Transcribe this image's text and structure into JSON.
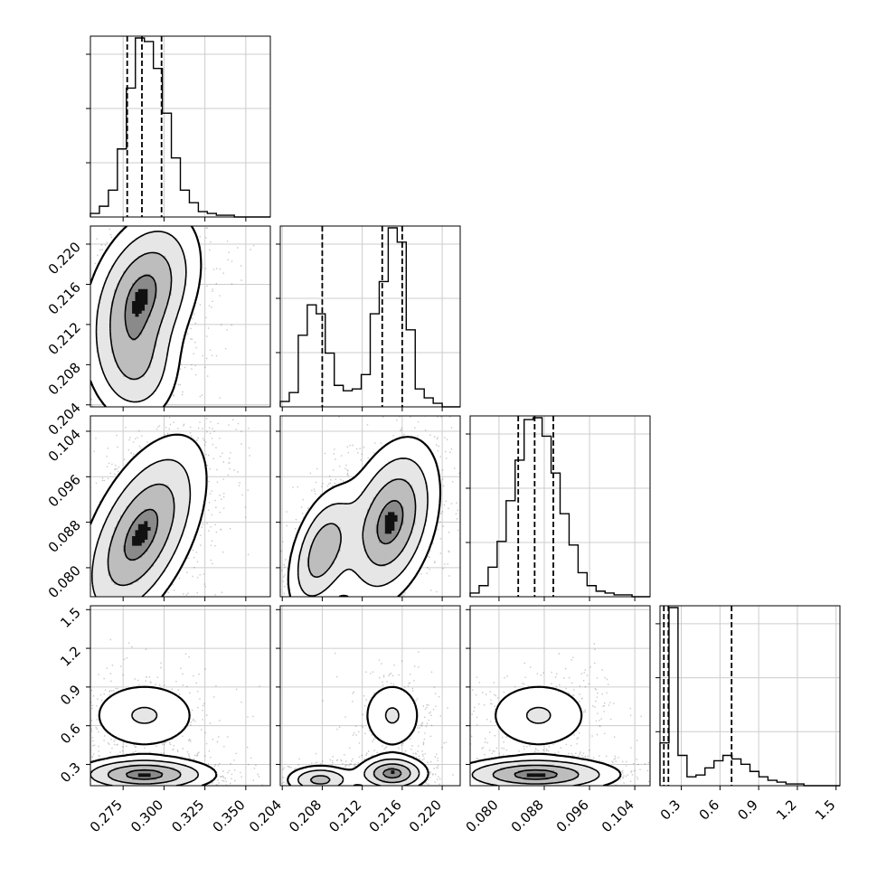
{
  "chart_data": {
    "type": "corner",
    "grid": true,
    "parameters": [
      {
        "range": [
          0.255,
          0.365
        ],
        "ticks": [
          "0.275",
          "0.300",
          "0.325",
          "0.350"
        ],
        "tick_values": [
          0.275,
          0.3,
          0.325,
          0.35
        ]
      },
      {
        "range": [
          0.2038,
          0.2218
        ],
        "ticks": [
          "0.204",
          "0.208",
          "0.212",
          "0.216",
          "0.220"
        ],
        "tick_values": [
          0.204,
          0.208,
          0.212,
          0.216,
          0.22
        ]
      },
      {
        "range": [
          0.0749,
          0.1067
        ],
        "ticks": [
          "0.080",
          "0.088",
          "0.096",
          "0.104"
        ],
        "tick_values": [
          0.08,
          0.088,
          0.096,
          0.104
        ]
      },
      {
        "range": [
          0.135,
          1.53
        ],
        "ticks": [
          "0.3",
          "0.6",
          "0.9",
          "1.2",
          "1.5"
        ],
        "tick_values": [
          0.3,
          0.6,
          0.9,
          1.2,
          1.5
        ]
      }
    ],
    "histograms": [
      {
        "counts": [
          2,
          6,
          15,
          38,
          72,
          100,
          98,
          83,
          58,
          33,
          15,
          8,
          3,
          2,
          1,
          1,
          0,
          0,
          0,
          0
        ],
        "quantiles": [
          0.2775,
          0.2865,
          0.2985
        ]
      },
      {
        "counts": [
          3,
          8,
          40,
          57,
          52,
          30,
          12,
          9,
          10,
          18,
          52,
          70,
          100,
          92,
          43,
          10,
          5,
          2,
          0,
          0
        ],
        "quantiles": [
          0.208,
          0.214,
          0.216
        ]
      },
      {
        "counts": [
          2,
          6,
          16,
          30,
          52,
          74,
          96,
          97,
          87,
          67,
          45,
          28,
          13,
          6,
          3,
          2,
          1,
          1,
          0,
          0
        ],
        "quantiles": [
          0.0834,
          0.0863,
          0.0896
        ]
      },
      {
        "counts": [
          24,
          100,
          17,
          5,
          6,
          10,
          14,
          17,
          15,
          12,
          8,
          5,
          3,
          2,
          1,
          1,
          0,
          0,
          0,
          0
        ],
        "quantiles": [
          0.165,
          0.2,
          0.69
        ]
      }
    ],
    "modes_2d": [
      {
        "xy": [
          0,
          1
        ],
        "modes": [
          {
            "c": [
              0.287,
              0.2151
            ],
            "w": [
              0.018,
              0.0042
            ],
            "r": 0.35,
            "amp": 1.0
          },
          {
            "c": [
              0.283,
              0.2077
            ],
            "w": [
              0.0145,
              0.0032
            ],
            "r": 0.0,
            "amp": 0.55
          }
        ]
      },
      {
        "xy": [
          0,
          2
        ],
        "modes": [
          {
            "c": [
              0.286,
              0.0858
            ],
            "w": [
              0.02,
              0.0088
            ],
            "r": 0.55,
            "amp": 1.0
          }
        ]
      },
      {
        "xy": [
          1,
          2
        ],
        "modes": [
          {
            "c": [
              0.208,
              0.0829
            ],
            "w": [
              0.0018,
              0.0058
            ],
            "r": 0.45,
            "amp": 0.8
          },
          {
            "c": [
              0.2148,
              0.088
            ],
            "w": [
              0.0025,
              0.0075
            ],
            "r": 0.35,
            "amp": 1.0
          }
        ]
      },
      {
        "xy": [
          0,
          3
        ],
        "modes": [
          {
            "c": [
              0.288,
              0.22
            ],
            "w": [
              0.022,
              0.07
            ],
            "r": 0.0,
            "amp": 1.0
          },
          {
            "c": [
              0.288,
              0.68
            ],
            "w": [
              0.02,
              0.16
            ],
            "r": 0.0,
            "amp": 0.35
          }
        ]
      },
      {
        "xy": [
          1,
          3
        ],
        "modes": [
          {
            "c": [
              0.2078,
              0.18
            ],
            "w": [
              0.0018,
              0.06
            ],
            "r": 0.0,
            "amp": 0.7
          },
          {
            "c": [
              0.215,
              0.23
            ],
            "w": [
              0.0018,
              0.07
            ],
            "r": 0.0,
            "amp": 1.0
          },
          {
            "c": [
              0.215,
              0.68
            ],
            "w": [
              0.0018,
              0.16
            ],
            "r": 0.0,
            "amp": 0.35
          }
        ]
      },
      {
        "xy": [
          2,
          3
        ],
        "modes": [
          {
            "c": [
              0.0865,
              0.22
            ],
            "w": [
              0.0075,
              0.07
            ],
            "r": 0.0,
            "amp": 1.0
          },
          {
            "c": [
              0.087,
              0.68
            ],
            "w": [
              0.0055,
              0.16
            ],
            "r": 0.0,
            "amp": 0.35
          }
        ]
      }
    ],
    "contour_levels": [
      0.135,
      0.325,
      0.6,
      0.88
    ]
  }
}
